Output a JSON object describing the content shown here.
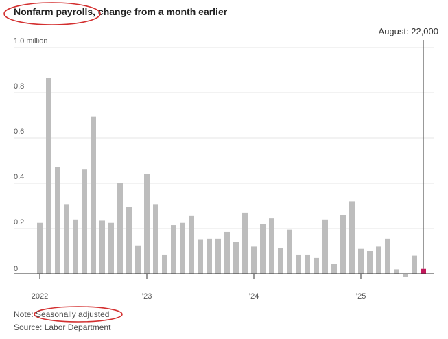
{
  "title": "Nonfarm payrolls, change from a month earlier",
  "note": "Note: Seasonally adjusted",
  "source": "Source: Labor Department",
  "colors": {
    "bar": "#bdbdbd",
    "highlight": "#c2185b",
    "grid": "#e6e6e6",
    "baseline": "#333333",
    "annotation_circle": "#d32f2f"
  },
  "chart_data": {
    "type": "bar",
    "title": "Nonfarm payrolls, change from a month earlier",
    "ylim": [
      0,
      1.0
    ],
    "yticks": [
      {
        "value": 1.0,
        "label": "1.0 million"
      },
      {
        "value": 0.8,
        "label": "0.8"
      },
      {
        "value": 0.6,
        "label": "0.6"
      },
      {
        "value": 0.4,
        "label": "0.4"
      },
      {
        "value": 0.2,
        "label": "0.2"
      },
      {
        "value": 0,
        "label": "0"
      }
    ],
    "xticks": [
      {
        "index": 0,
        "label": "2022"
      },
      {
        "index": 12,
        "label": "’23"
      },
      {
        "index": 24,
        "label": "’24"
      },
      {
        "index": 36,
        "label": "’25"
      }
    ],
    "months": [
      "2022-01",
      "2022-02",
      "2022-03",
      "2022-04",
      "2022-05",
      "2022-06",
      "2022-07",
      "2022-08",
      "2022-09",
      "2022-10",
      "2022-11",
      "2022-12",
      "2023-01",
      "2023-02",
      "2023-03",
      "2023-04",
      "2023-05",
      "2023-06",
      "2023-07",
      "2023-08",
      "2023-09",
      "2023-10",
      "2023-11",
      "2023-12",
      "2024-01",
      "2024-02",
      "2024-03",
      "2024-04",
      "2024-05",
      "2024-06",
      "2024-07",
      "2024-08",
      "2024-09",
      "2024-10",
      "2024-11",
      "2024-12",
      "2025-01",
      "2025-02",
      "2025-03",
      "2025-04",
      "2025-05",
      "2025-06",
      "2025-07",
      "2025-08"
    ],
    "values": [
      0.225,
      0.865,
      0.47,
      0.305,
      0.24,
      0.46,
      0.695,
      0.235,
      0.225,
      0.4,
      0.295,
      0.125,
      0.44,
      0.305,
      0.085,
      0.215,
      0.225,
      0.255,
      0.15,
      0.155,
      0.155,
      0.185,
      0.14,
      0.27,
      0.12,
      0.22,
      0.245,
      0.115,
      0.195,
      0.085,
      0.085,
      0.07,
      0.24,
      0.045,
      0.26,
      0.32,
      0.11,
      0.1,
      0.12,
      0.155,
      0.02,
      -0.013,
      0.08,
      0.022
    ],
    "highlight": {
      "month": "2025-08",
      "value": 0.022,
      "label": "August: 22,000"
    }
  }
}
